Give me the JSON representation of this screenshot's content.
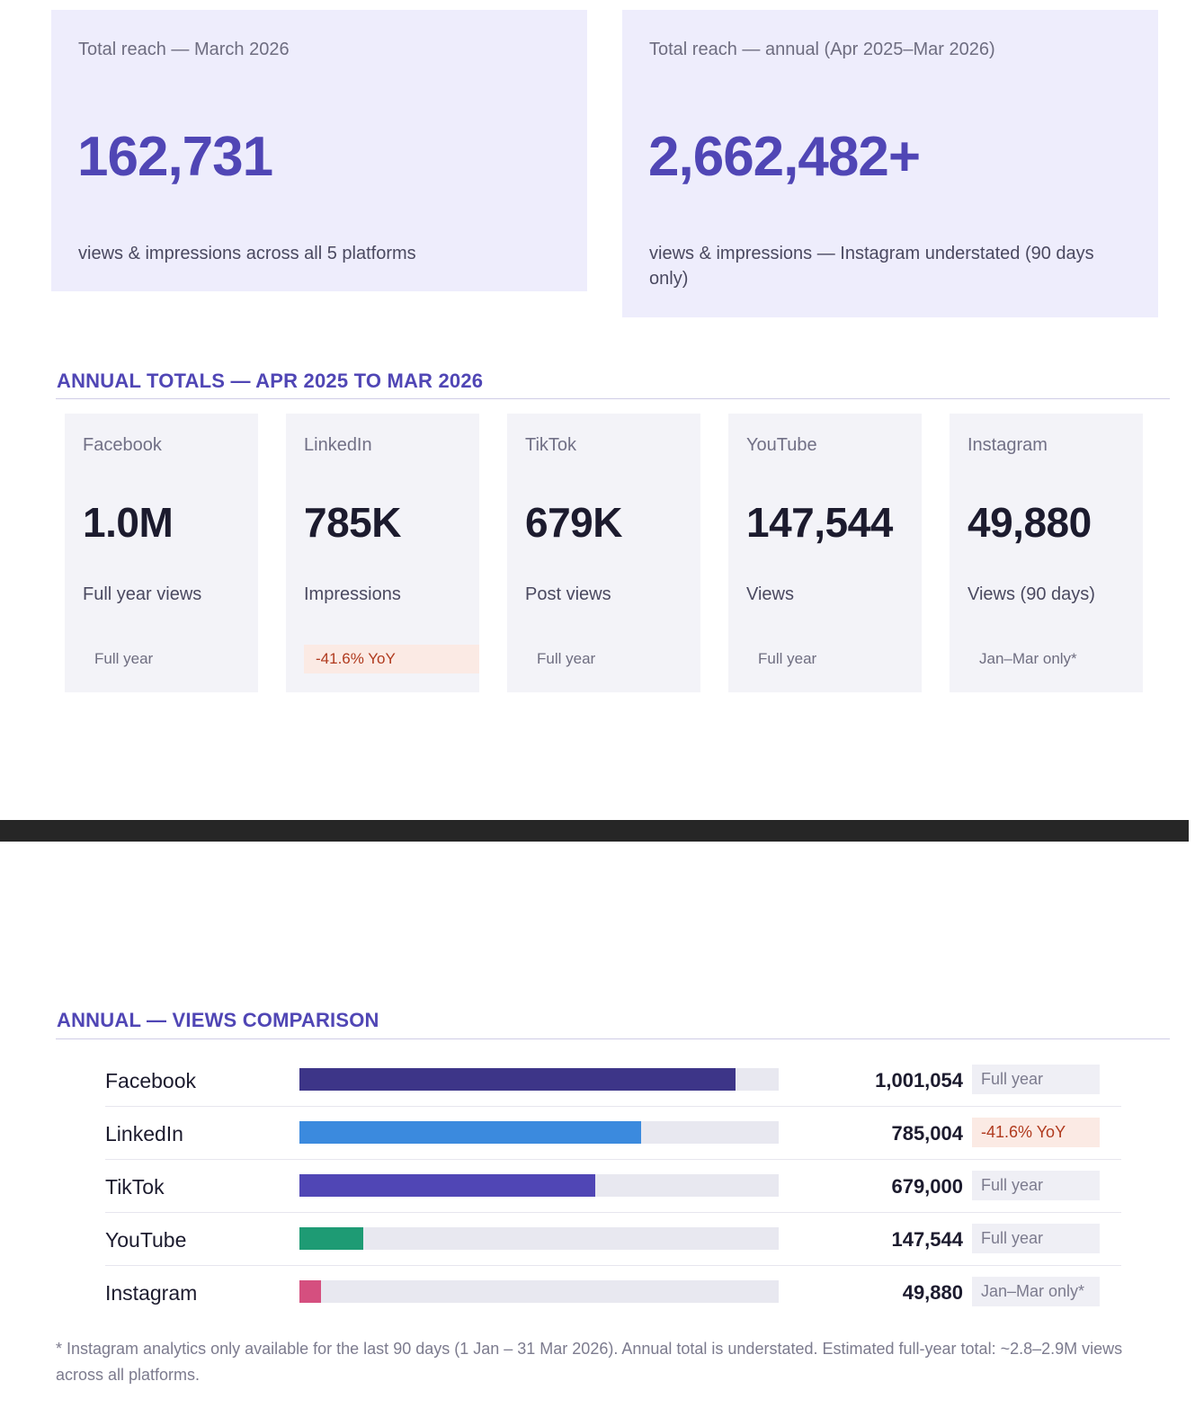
{
  "hero": [
    {
      "label": "Total reach — March 2026",
      "value": "162,731",
      "sub": "views & impressions across all 5 platforms"
    },
    {
      "label": "Total reach — annual (Apr 2025–Mar 2026)",
      "value": "2,662,482+",
      "sub": "views & impressions — Instagram understated (90 days only)"
    }
  ],
  "annual_totals": {
    "title": "ANNUAL TOTALS — APR 2025 TO MAR 2026",
    "cards": [
      {
        "platform": "Facebook",
        "value": "1.0M",
        "metric": "Full year views",
        "badge": "Full year"
      },
      {
        "platform": "LinkedIn",
        "value": "785K",
        "metric": "Impressions",
        "badge": "-41.6% YoY"
      },
      {
        "platform": "TikTok",
        "value": "679K",
        "metric": "Post views",
        "badge": "Full year"
      },
      {
        "platform": "YouTube",
        "value": "147,544",
        "metric": "Views",
        "badge": "Full year"
      },
      {
        "platform": "Instagram",
        "value": "49,880",
        "metric": "Views (90 days)",
        "badge": "Jan–Mar only*"
      }
    ]
  },
  "comparison": {
    "title": "ANNUAL — VIEWS COMPARISON",
    "max": 1100000,
    "rows": [
      {
        "platform": "Facebook",
        "views": 1001054,
        "views_label": "1,001,054",
        "badge": "Full year",
        "color": "#3d3588"
      },
      {
        "platform": "LinkedIn",
        "views": 785004,
        "views_label": "785,004",
        "badge": "-41.6% YoY",
        "color": "#3b8ade"
      },
      {
        "platform": "TikTok",
        "views": 679000,
        "views_label": "679,000",
        "badge": "Full year",
        "color": "#5046b5"
      },
      {
        "platform": "YouTube",
        "views": 147544,
        "views_label": "147,544",
        "badge": "Full year",
        "color": "#1e9b74"
      },
      {
        "platform": "Instagram",
        "views": 49880,
        "views_label": "49,880",
        "badge": "Jan–Mar only*",
        "color": "#d54f7f"
      }
    ]
  },
  "footnote": "* Instagram analytics only available for the last 90 days (1 Jan – 31 Mar 2026). Annual total is understated. Estimated full-year total: ~2.8–2.9M views across all platforms.",
  "colors": {
    "accent": "#5046b5",
    "hero_bg": "#eeedfc",
    "card_bg": "#f3f3f8",
    "negative": "#b03a1e",
    "negative_bg": "#fbeae4"
  }
}
